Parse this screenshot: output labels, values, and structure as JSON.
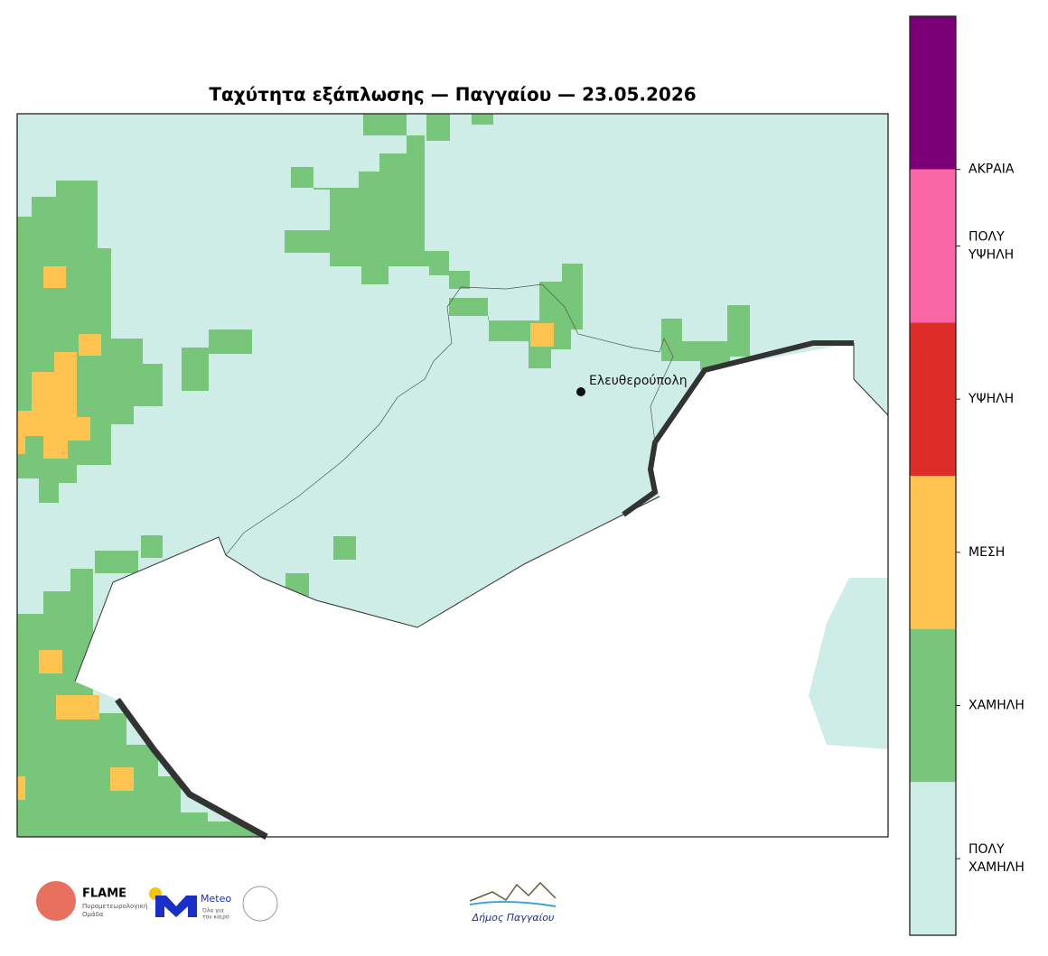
{
  "title": "Ταχύτητα εξάπλωσης — Παγγαίου — 23.05.2026",
  "city": "Ελευθερούπολη",
  "legend": [
    {
      "lines": [],
      "color": "#7b0077"
    },
    {
      "lines": [
        "ΑΚΡΑΙΑ"
      ],
      "color": "#f966a3"
    },
    {
      "lines": [
        "ΠΟΛΥ",
        "ΥΨΗΛΗ"
      ],
      "color": "#de2d26"
    },
    {
      "lines": [
        "ΥΨΗΛΗ"
      ],
      "color": "#fec44f"
    },
    {
      "lines": [
        "ΜΕΣΗ"
      ],
      "color": "#78c679"
    },
    {
      "lines": [
        "ΧΑΜΗΛΗ"
      ],
      "color": "#cdede6"
    },
    {
      "lines": [
        "ΠΟΛΥ",
        "ΧΑΜΗΛΗ"
      ]
    }
  ],
  "logos": {
    "flame": "FLAME",
    "flame_sub": [
      "Πυρομετεωρολογική",
      "Ομάδα"
    ],
    "meteo": "Meteo",
    "meteo_sub": [
      "Όλα για",
      "τον καιρό"
    ],
    "municipality": "Δήμος Παγγαίου"
  }
}
